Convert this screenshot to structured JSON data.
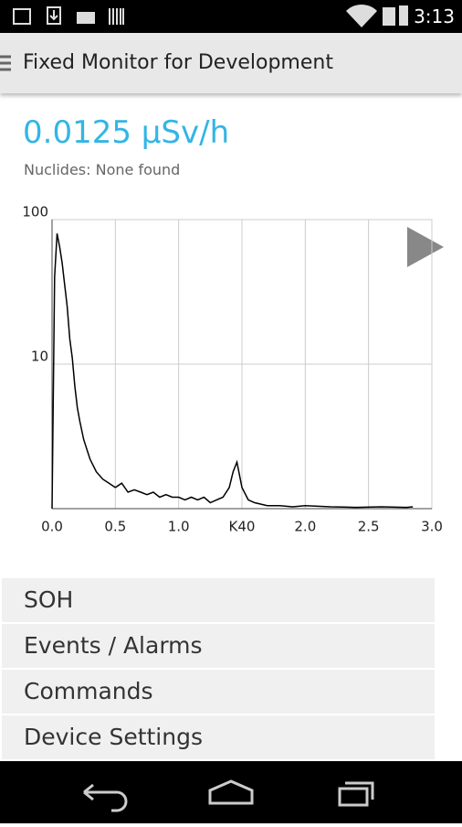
{
  "status_bar": {
    "time": "3:13"
  },
  "header": {
    "title": "Fixed Monitor for Development"
  },
  "reading": "0.0125 µSv/h",
  "nuclides": "Nuclides: None found",
  "chart_data": {
    "type": "line",
    "x": [
      0,
      0.02,
      0.04,
      0.06,
      0.08,
      0.1,
      0.12,
      0.14,
      0.16,
      0.18,
      0.2,
      0.22,
      0.25,
      0.3,
      0.35,
      0.4,
      0.45,
      0.5,
      0.55,
      0.6,
      0.65,
      0.7,
      0.75,
      0.8,
      0.85,
      0.9,
      0.95,
      1.0,
      1.05,
      1.1,
      1.15,
      1.2,
      1.25,
      1.3,
      1.35,
      1.4,
      1.43,
      1.46,
      1.5,
      1.55,
      1.6,
      1.7,
      1.8,
      1.9,
      2.0,
      2.2,
      2.4,
      2.6,
      2.8,
      2.85
    ],
    "values": [
      1,
      40,
      80,
      65,
      50,
      35,
      25,
      15,
      11,
      7,
      5,
      4,
      3,
      2.2,
      1.8,
      1.6,
      1.5,
      1.4,
      1.5,
      1.3,
      1.35,
      1.3,
      1.25,
      1.3,
      1.2,
      1.25,
      1.2,
      1.2,
      1.15,
      1.2,
      1.15,
      1.2,
      1.1,
      1.15,
      1.2,
      1.4,
      1.8,
      2.1,
      1.4,
      1.15,
      1.1,
      1.05,
      1.05,
      1.03,
      1.05,
      1.03,
      1.02,
      1.03,
      1.02,
      1.03
    ],
    "color": "#000000",
    "log_scale": true,
    "grid": true,
    "xlim": [
      0,
      3
    ],
    "ylim": [
      1,
      100
    ],
    "xticks": [
      {
        "value": 0,
        "label": "0.0"
      },
      {
        "value": 0.5,
        "label": "0.5"
      },
      {
        "value": 1,
        "label": "1.0"
      },
      {
        "value": 1.5,
        "label": "K40"
      },
      {
        "value": 2,
        "label": "2.0"
      },
      {
        "value": 2.5,
        "label": "2.5"
      },
      {
        "value": 3,
        "label": "3.0"
      }
    ],
    "yticks": [
      10,
      100
    ]
  },
  "menu": [
    "SOH",
    "Events / Alarms",
    "Commands",
    "Device Settings"
  ]
}
